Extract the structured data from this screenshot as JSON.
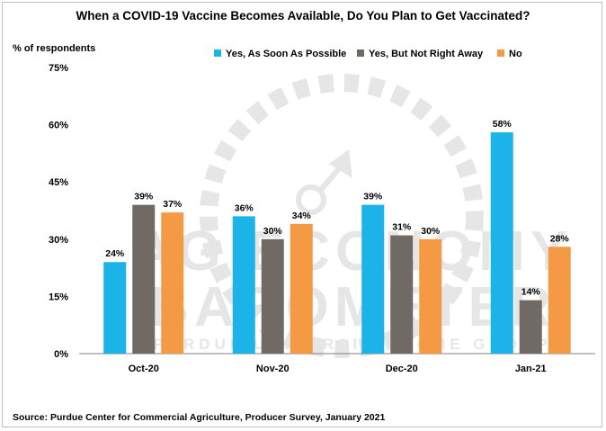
{
  "chart_data": {
    "type": "bar",
    "title": "When a COVID-19 Vaccine Becomes Available, Do You Plan to Get Vaccinated?",
    "ylabel": "% of respondents",
    "xlabel": "",
    "categories": [
      "Oct-20",
      "Nov-20",
      "Dec-20",
      "Jan-21"
    ],
    "ylim": [
      0,
      75
    ],
    "yticks": [
      0,
      15,
      30,
      45,
      60,
      75
    ],
    "ytick_labels": [
      "0%",
      "15%",
      "30%",
      "45%",
      "60%",
      "75%"
    ],
    "grid": false,
    "legend_position": "top",
    "series": [
      {
        "name": "Yes, As Soon As Possible",
        "color": "#1bb3e8",
        "values": [
          24,
          36,
          39,
          58
        ],
        "labels": [
          "24%",
          "36%",
          "39%",
          "58%"
        ]
      },
      {
        "name": "Yes, But Not Right Away",
        "color": "#716a64",
        "values": [
          39,
          30,
          31,
          14
        ],
        "labels": [
          "39%",
          "30%",
          "31%",
          "14%"
        ]
      },
      {
        "name": "No",
        "color": "#f49a45",
        "values": [
          37,
          34,
          30,
          28
        ],
        "labels": [
          "37%",
          "34%",
          "30%",
          "28%"
        ]
      }
    ],
    "source": "Source: Purdue Center for Commercial Agriculture, Producer Survey, January 2021"
  },
  "watermark": {
    "line1": "AG ECONOMY",
    "line2": "BAROMETER",
    "line3": "PURDUE UNIVERSITY · CME GROUP"
  }
}
